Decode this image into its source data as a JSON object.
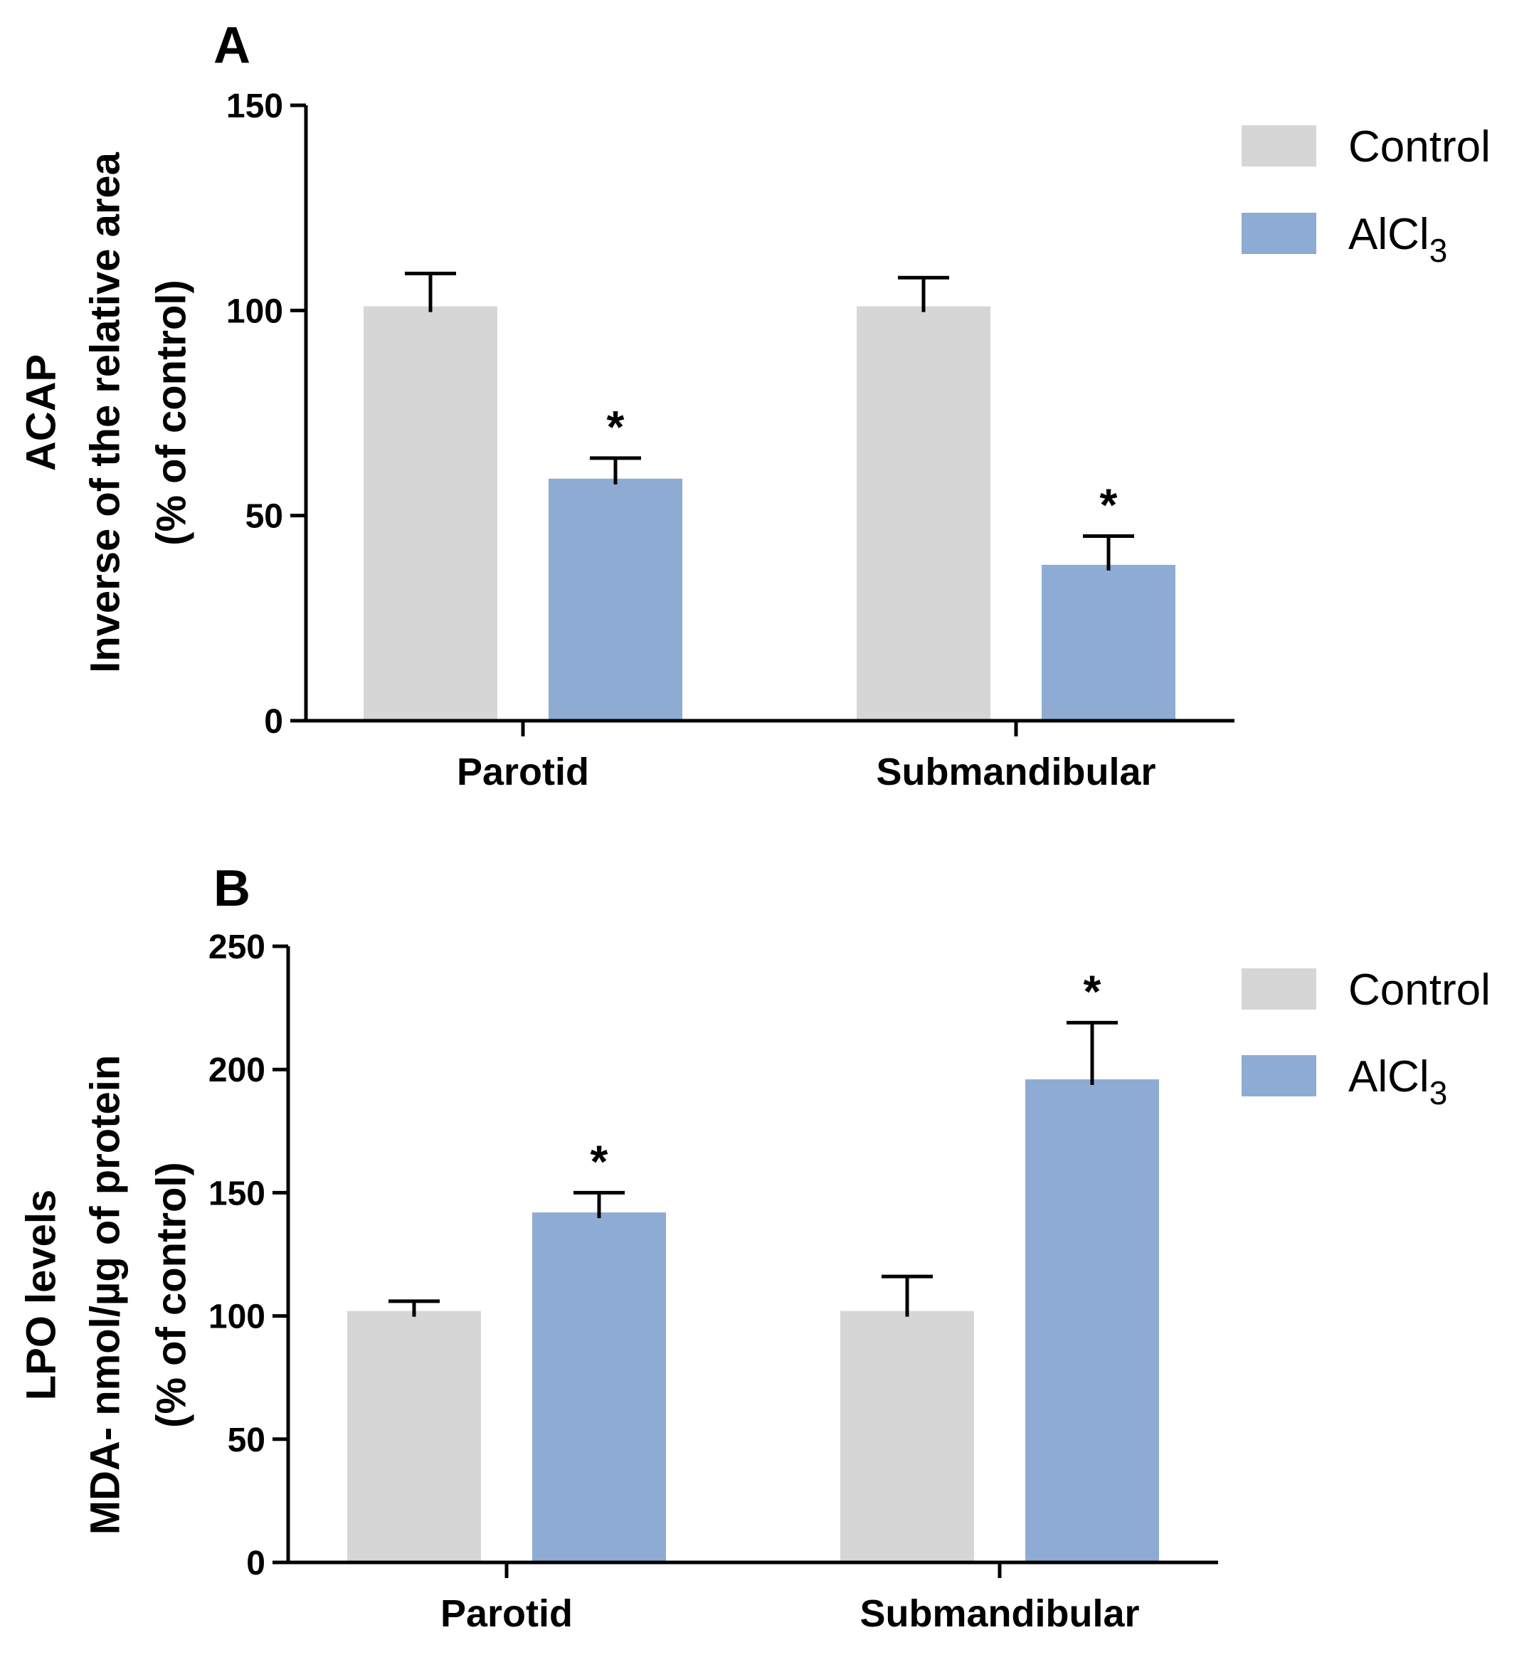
{
  "chart_data": [
    {
      "panel": "A",
      "type": "bar",
      "categories": [
        "Parotid",
        "Submandibular"
      ],
      "series": [
        {
          "name": "Control",
          "values": [
            101,
            101
          ],
          "errors": [
            8,
            7
          ],
          "significant": [
            false,
            false
          ],
          "color": "#d6d6d6"
        },
        {
          "name": "AlCl",
          "name_sub": "3",
          "values": [
            59,
            38
          ],
          "errors": [
            5,
            7
          ],
          "significant": [
            true,
            true
          ],
          "color": "#8eabd3"
        }
      ],
      "ylabel_lines": [
        "ACAP",
        "Inverse of the relative area",
        "(% of control)"
      ],
      "ylim": [
        0,
        150
      ],
      "yticks": [
        0,
        50,
        100,
        150
      ],
      "significance_marker": "*",
      "legend_position": "top-right"
    },
    {
      "panel": "B",
      "type": "bar",
      "categories": [
        "Parotid",
        "Submandibular"
      ],
      "series": [
        {
          "name": "Control",
          "values": [
            102,
            102
          ],
          "errors": [
            4,
            14
          ],
          "significant": [
            false,
            false
          ],
          "color": "#d6d6d6"
        },
        {
          "name": "AlCl",
          "name_sub": "3",
          "values": [
            142,
            196
          ],
          "errors": [
            8,
            23
          ],
          "significant": [
            true,
            true
          ],
          "color": "#8eabd3"
        }
      ],
      "ylabel_lines": [
        "LPO levels",
        "MDA- nmol/µg of protein",
        "(% of control)"
      ],
      "ylim": [
        0,
        250
      ],
      "yticks": [
        0,
        50,
        100,
        150,
        200,
        250
      ],
      "significance_marker": "*",
      "legend_position": "top-right"
    }
  ]
}
